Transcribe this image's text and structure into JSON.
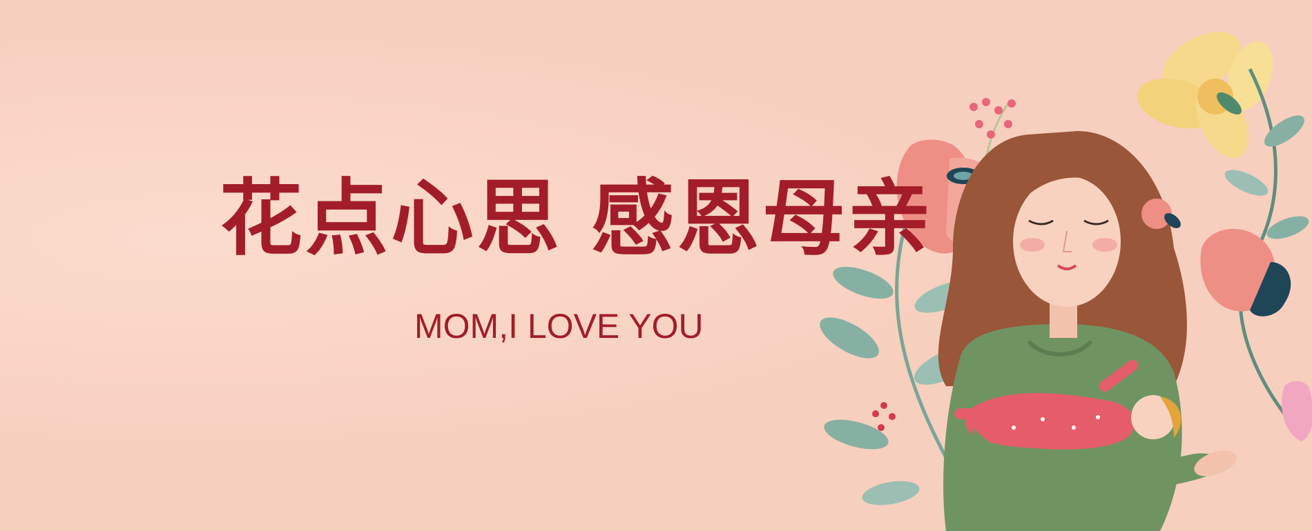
{
  "banner": {
    "headline_part1": "花点心思",
    "headline_part2": "感恩母亲",
    "subline": "MOM,I LOVE YOU",
    "colors": {
      "background": "#f7cfbf",
      "text": "#a21d29",
      "sweater": "#6f9462",
      "hair": "#9a5638",
      "skin": "#f8d2bf",
      "petal": "#ee8f85",
      "leaf": "#86b0a2",
      "yellow_flower": "#f6d98a",
      "dark_accent": "#1f4656"
    },
    "illustration_icon": "mother-holding-baby-with-flowers"
  }
}
